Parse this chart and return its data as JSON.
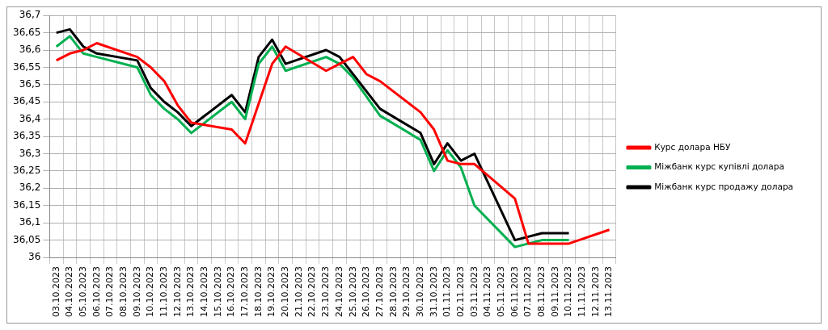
{
  "chart_data": {
    "type": "line",
    "categories": [
      "03.10.2023",
      "04.10.2023",
      "05.10.2023",
      "06.10.2023",
      "07.10.2023",
      "08.10.2023",
      "09.10.2023",
      "10.10.2023",
      "11.10.2023",
      "12.10.2023",
      "13.10.2023",
      "14.10.2023",
      "15.10.2023",
      "16.10.2023",
      "17.10.2023",
      "18.10.2023",
      "19.10.2023",
      "20.10.2023",
      "21.10.2023",
      "22.10.2023",
      "23.10.2023",
      "24.10.2023",
      "25.10.2023",
      "26.10.2023",
      "27.10.2023",
      "28.10.2023",
      "29.10.2023",
      "30.10.2023",
      "31.10.2023",
      "01.11.2023",
      "02.11.2023",
      "03.11.2023",
      "04.11.2023",
      "05.11.2023",
      "06.11.2023",
      "07.11.2023",
      "08.11.2023",
      "09.11.2023",
      "10.11.2023",
      "11.11.2023",
      "12.11.2023",
      "13.11.2023"
    ],
    "series": [
      {
        "name": "Курс долара НБУ",
        "color": "#ff0000",
        "values": [
          36.57,
          36.59,
          36.6,
          36.62,
          null,
          null,
          36.58,
          36.55,
          36.51,
          36.44,
          36.39,
          null,
          null,
          36.37,
          36.33,
          null,
          36.56,
          36.61,
          null,
          null,
          36.54,
          36.56,
          36.58,
          36.53,
          36.51,
          null,
          null,
          36.42,
          36.37,
          36.28,
          36.27,
          36.27,
          null,
          null,
          36.17,
          36.04,
          36.04,
          null,
          36.04,
          null,
          null,
          36.08
        ]
      },
      {
        "name": "Міжбанк курс купівлі долара",
        "color": "#00b050",
        "values": [
          36.61,
          36.64,
          36.59,
          36.58,
          null,
          null,
          36.55,
          36.47,
          36.43,
          36.4,
          36.36,
          null,
          null,
          36.45,
          36.4,
          36.56,
          36.61,
          36.54,
          null,
          null,
          36.58,
          36.56,
          36.52,
          null,
          36.41,
          null,
          null,
          36.34,
          36.25,
          36.31,
          36.26,
          36.15,
          null,
          null,
          36.03,
          36.04,
          36.05,
          null,
          36.05,
          null,
          null,
          null
        ]
      },
      {
        "name": "Міжбанк курс продажу долара",
        "color": "#000000",
        "values": [
          36.65,
          36.66,
          36.61,
          36.59,
          null,
          null,
          36.57,
          36.49,
          36.45,
          36.42,
          36.38,
          null,
          null,
          36.47,
          36.42,
          36.58,
          36.63,
          36.56,
          null,
          null,
          36.6,
          36.58,
          36.53,
          null,
          36.43,
          null,
          null,
          36.36,
          36.27,
          36.33,
          36.28,
          36.3,
          null,
          null,
          36.05,
          null,
          36.07,
          null,
          36.07,
          null,
          null,
          null
        ]
      }
    ],
    "ylim": [
      36,
      36.7
    ],
    "yticks": [
      {
        "value": 36,
        "label": "36"
      },
      {
        "value": 36.05,
        "label": "36,05"
      },
      {
        "value": 36.1,
        "label": "36,1"
      },
      {
        "value": 36.15,
        "label": "36,15"
      },
      {
        "value": 36.2,
        "label": "36,2"
      },
      {
        "value": 36.25,
        "label": "36,25"
      },
      {
        "value": 36.3,
        "label": "36,3"
      },
      {
        "value": 36.35,
        "label": "36,35"
      },
      {
        "value": 36.4,
        "label": "36,4"
      },
      {
        "value": 36.45,
        "label": "36,45"
      },
      {
        "value": 36.5,
        "label": "36,5"
      },
      {
        "value": 36.55,
        "label": "36,55"
      },
      {
        "value": 36.6,
        "label": "36,6"
      },
      {
        "value": 36.65,
        "label": "36,65"
      },
      {
        "value": 36.7,
        "label": "36,7"
      }
    ],
    "grid": true,
    "legend": "right",
    "marker": "none",
    "line_style": "solid"
  }
}
